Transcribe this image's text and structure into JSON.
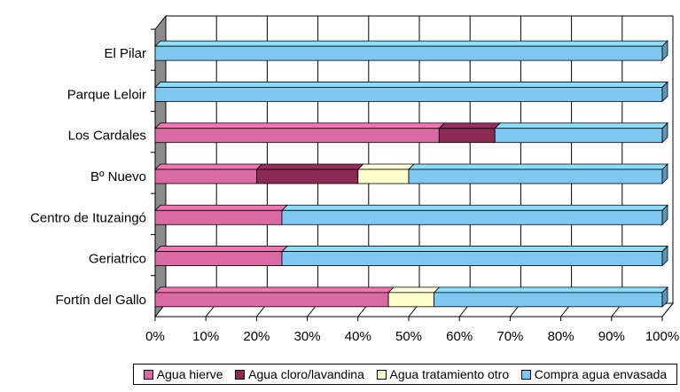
{
  "chart_data": {
    "type": "bar",
    "orientation": "horizontal",
    "stacked": "percent",
    "style": "3d",
    "categories": [
      "El Pilar",
      "Parque Leloir",
      "Los Cardales",
      "Bº Nuevo",
      "Centro de Ituzaingó",
      "Geriatrico",
      "Fortín del Gallo"
    ],
    "series": [
      {
        "name": "Agua hierve",
        "color": "#d96aa3",
        "values": [
          0,
          0,
          56,
          20,
          25,
          25,
          46
        ]
      },
      {
        "name": "Agua cloro/lavandina",
        "color": "#8b2a55",
        "values": [
          0,
          0,
          11,
          20,
          0,
          0,
          0
        ]
      },
      {
        "name": "Agua tratamiento otro",
        "color": "#ffffcc",
        "values": [
          0,
          0,
          0,
          10,
          0,
          0,
          9
        ]
      },
      {
        "name": "Compra agua envasada",
        "color": "#7ec8f2",
        "values": [
          100,
          100,
          33,
          50,
          75,
          75,
          45
        ]
      }
    ],
    "xlim": [
      0,
      100
    ],
    "xticks": [
      "0%",
      "10%",
      "20%",
      "30%",
      "40%",
      "50%",
      "60%",
      "70%",
      "80%",
      "90%",
      "100%"
    ],
    "grid": true,
    "legend_position": "bottom"
  }
}
